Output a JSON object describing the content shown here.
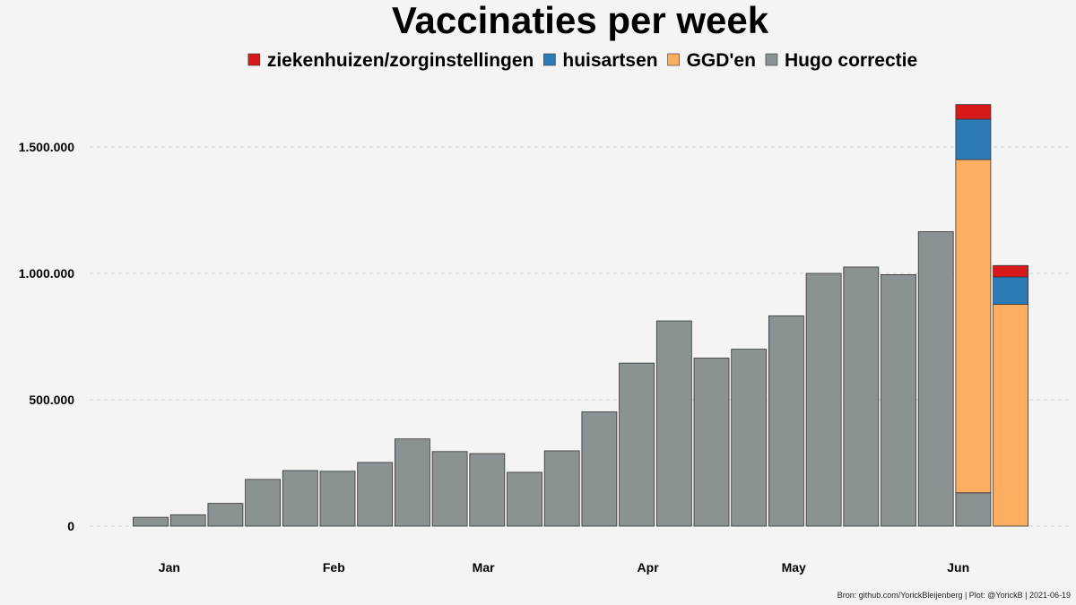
{
  "chart_data": {
    "type": "bar",
    "stacked": true,
    "title": "Vaccinaties per week",
    "xlabel": "",
    "ylabel": "",
    "ylim": [
      -60000,
      1760000
    ],
    "y_ticks": [
      0,
      500000,
      1000000,
      1500000
    ],
    "y_tick_labels": [
      "0",
      "500.000",
      "1.000.000",
      "1.500.000"
    ],
    "grid": "horizontal dashed",
    "legend_position": "top",
    "weeks": [
      1,
      2,
      3,
      4,
      5,
      6,
      7,
      8,
      9,
      10,
      11,
      12,
      13,
      14,
      15,
      16,
      17,
      18,
      19,
      20,
      21,
      22,
      23,
      24
    ],
    "x_ticks": [
      {
        "label": "Jan",
        "pos": 0.5
      },
      {
        "label": "Feb",
        "pos": 4.9
      },
      {
        "label": "Mar",
        "pos": 8.9
      },
      {
        "label": "Apr",
        "pos": 13.3
      },
      {
        "label": "May",
        "pos": 17.2
      },
      {
        "label": "Jun",
        "pos": 21.6
      }
    ],
    "series": [
      {
        "name": "Hugo correctie",
        "color": "#8a9294",
        "values": [
          35000,
          45000,
          90000,
          185000,
          220000,
          217000,
          252000,
          345000,
          295000,
          287000,
          213000,
          298000,
          452000,
          645000,
          812000,
          665000,
          700000,
          832000,
          1000000,
          1025000,
          995000,
          1165000,
          132000,
          0
        ]
      },
      {
        "name": "GGD'en",
        "color": "#fdae61",
        "values": [
          0,
          0,
          0,
          0,
          0,
          0,
          0,
          0,
          0,
          0,
          0,
          0,
          0,
          0,
          0,
          0,
          0,
          0,
          0,
          0,
          0,
          0,
          1318000,
          878000
        ]
      },
      {
        "name": "huisartsen",
        "color": "#2c7bb6",
        "values": [
          0,
          0,
          0,
          0,
          0,
          0,
          0,
          0,
          0,
          0,
          0,
          0,
          0,
          0,
          0,
          0,
          0,
          0,
          0,
          0,
          0,
          0,
          160000,
          108000
        ]
      },
      {
        "name": "ziekenhuizen/zorginstellingen",
        "color": "#d7191c",
        "values": [
          0,
          0,
          0,
          0,
          0,
          0,
          0,
          0,
          0,
          0,
          0,
          0,
          0,
          0,
          0,
          0,
          0,
          0,
          0,
          0,
          0,
          0,
          58000,
          45000
        ]
      }
    ],
    "legend_order": [
      "ziekenhuizen/zorginstellingen",
      "huisartsen",
      "GGD'en",
      "Hugo correctie"
    ],
    "caption": "Bron: github.com/YorickBleijenberg | Plot: @YorickB  |  2021-06-19"
  }
}
